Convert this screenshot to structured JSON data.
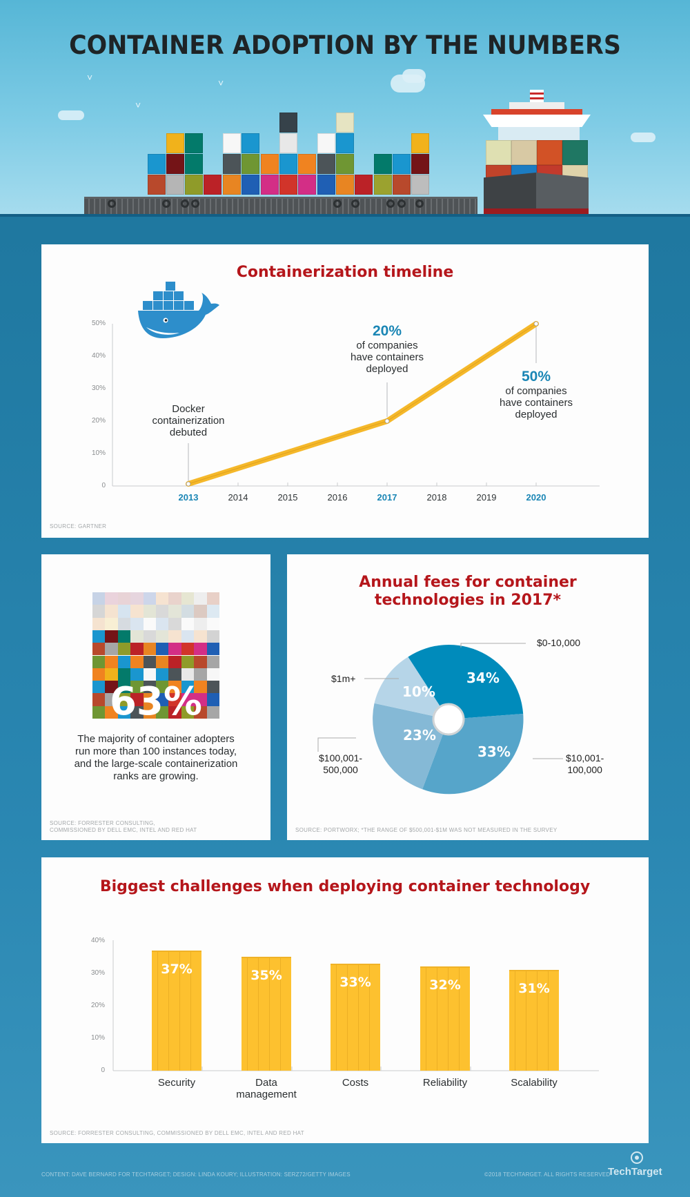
{
  "header": {
    "title": "CONTAINER ADOPTION BY THE NUMBERS"
  },
  "timeline": {
    "title": "Containerization timeline",
    "source": "SOURCE: GARTNER",
    "annotations": {
      "docker": "Docker\ncontainerization\ndebuted",
      "a2017_value": "20%",
      "a2017_text": "of companies\nhave containers\ndeployed",
      "a2020_value": "50%",
      "a2020_text": "of companies\nhave containers\ndeployed"
    }
  },
  "stat63": {
    "value": "63%",
    "text": "The majority of container adopters run more than 100 instances today, and the large-scale containerization ranks are growing.",
    "source_line1": "SOURCE: FORRESTER CONSULTING,",
    "source_line2": "COMMISSIONED BY DELL EMC, INTEL AND RED HAT"
  },
  "fees": {
    "title_line1": "Annual fees for container",
    "title_line2": "technologies in 2017*",
    "source": "SOURCE: PORTWORX; *THE RANGE OF $500,001-$1M WAS NOT MEASURED IN THE SURVEY"
  },
  "challenges": {
    "title": "Biggest challenges when deploying container technology",
    "source": "SOURCE: FORRESTER CONSULTING, COMMISSIONED BY DELL EMC, INTEL AND RED HAT"
  },
  "footer": {
    "credits": "CONTENT: DAVE BERNARD FOR TECHTARGET; DESIGN: LINDA KOURY; ILLUSTRATION: SERZ72/GETTY IMAGES",
    "copyright": "©2018 TECHTARGET. ALL RIGHTS RESERVED",
    "logo": "TechTarget"
  },
  "colors": {
    "title_red": "#b5161b",
    "accent_blue": "#1a86b5",
    "line_yellow": "#f5b82a",
    "bar_yellow": "#fdc12f",
    "pie_dark": "#008bbb",
    "pie_mid": "#56a5ca",
    "pie_light": "#85b9d6",
    "pie_lightest": "#b6d5e8"
  },
  "chart_data": [
    {
      "type": "line",
      "title": "Containerization timeline",
      "xlabel": "",
      "ylabel": "",
      "x": [
        "2013",
        "2014",
        "2015",
        "2016",
        "2017",
        "2018",
        "2019",
        "2020"
      ],
      "y_tick_labels": [
        "0",
        "10%",
        "20%",
        "30%",
        "40%",
        "50%"
      ],
      "ylim": [
        0,
        50
      ],
      "grid": false,
      "series": [
        {
          "name": "Companies with containers deployed (%)",
          "x": [
            "2013",
            "2017",
            "2020"
          ],
          "values": [
            0,
            20,
            50
          ]
        }
      ],
      "highlighted_x": [
        "2013",
        "2017",
        "2020"
      ],
      "annotations": [
        {
          "x": "2013",
          "text": "Docker containerization debuted"
        },
        {
          "x": "2017",
          "text": "20% of companies have containers deployed"
        },
        {
          "x": "2020",
          "text": "50% of companies have containers deployed"
        }
      ]
    },
    {
      "type": "pie",
      "title": "Annual fees for container technologies in 2017*",
      "categories": [
        "$0-10,000",
        "$10,001-100,000",
        "$100,001-500,000",
        "$1m+"
      ],
      "values": [
        34,
        33,
        23,
        10
      ],
      "value_labels": [
        "34%",
        "33%",
        "23%",
        "10%"
      ],
      "donut_hole": true,
      "legend_position": "callouts"
    },
    {
      "type": "bar",
      "title": "Biggest challenges when deploying container technology",
      "categories": [
        "Security",
        "Data\nmanagement",
        "Costs",
        "Reliability",
        "Scalability"
      ],
      "values": [
        37,
        35,
        33,
        32,
        31
      ],
      "value_labels": [
        "37%",
        "35%",
        "33%",
        "32%",
        "31%"
      ],
      "y_tick_labels": [
        "0",
        "10%",
        "20%",
        "30%",
        "40%"
      ],
      "ylim": [
        0,
        40
      ],
      "grid": false,
      "xlabel": "",
      "ylabel": ""
    }
  ]
}
